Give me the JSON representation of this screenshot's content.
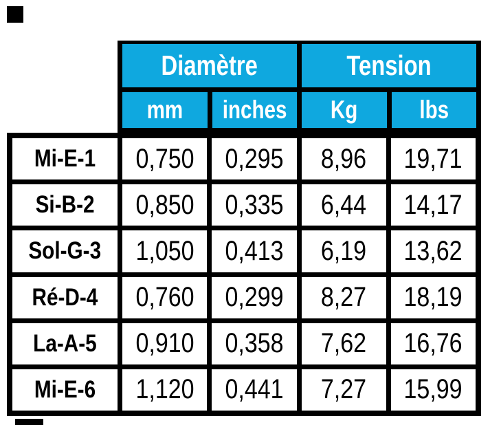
{
  "page": {
    "background_color": "#ffffff"
  },
  "crop_marks": {
    "color": "#000000"
  },
  "table": {
    "accent_color": "#0fa8df",
    "grid_color": "#000000",
    "header_text_color": "#ffffff",
    "body_text_color": "#000000",
    "column_groups": [
      {
        "label": "Diamètre"
      },
      {
        "label": "Tension"
      }
    ],
    "sub_headers": [
      "mm",
      "inches",
      "Kg",
      "lbs"
    ],
    "rows": [
      {
        "label": "Mi-E-1",
        "values": [
          "0,750",
          "0,295",
          "8,96",
          "19,71"
        ]
      },
      {
        "label": "Si-B-2",
        "values": [
          "0,850",
          "0,335",
          "6,44",
          "14,17"
        ]
      },
      {
        "label": "Sol-G-3",
        "values": [
          "1,050",
          "0,413",
          "6,19",
          "13,62"
        ]
      },
      {
        "label": "Ré-D-4",
        "values": [
          "0,760",
          "0,299",
          "8,27",
          "18,19"
        ]
      },
      {
        "label": "La-A-5",
        "values": [
          "0,910",
          "0,358",
          "7,62",
          "16,76"
        ]
      },
      {
        "label": "Mi-E-6",
        "values": [
          "1,120",
          "0,441",
          "7,27",
          "15,99"
        ]
      }
    ]
  }
}
